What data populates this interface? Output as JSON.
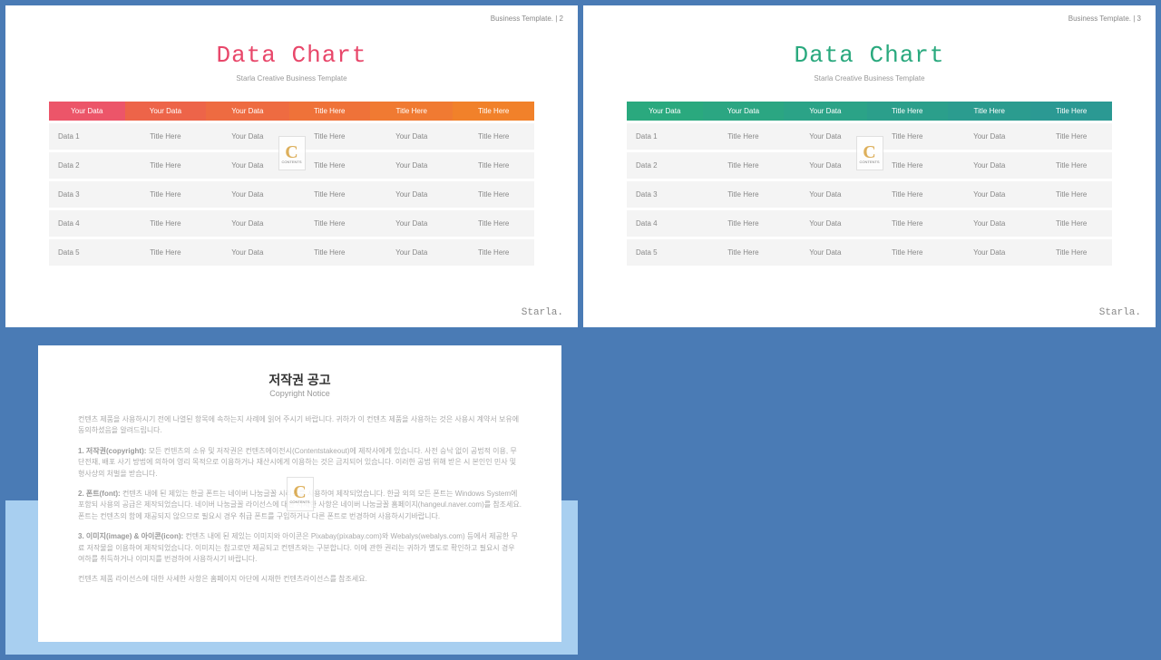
{
  "header_template": "Business Template.",
  "slides": [
    {
      "page": "2",
      "title": "Data Chart",
      "title_class": "pink",
      "subtitle": "Starla Creative Business Template",
      "brand": "Starla.",
      "header_colors": [
        "#ec5569",
        "#ed6449",
        "#ee6b41",
        "#ef7239",
        "#f07a32",
        "#f1812a"
      ],
      "columns": [
        "Your Data",
        "Your Data",
        "Your Data",
        "Title Here",
        "Title Here",
        "Title Here"
      ],
      "rows": [
        [
          "Data 1",
          "Title Here",
          "Your Data",
          "Title Here",
          "Your Data",
          "Title Here"
        ],
        [
          "Data 2",
          "Title Here",
          "Your Data",
          "Title Here",
          "Your Data",
          "Title Here"
        ],
        [
          "Data 3",
          "Title Here",
          "Your Data",
          "Title Here",
          "Your Data",
          "Title Here"
        ],
        [
          "Data 4",
          "Title Here",
          "Your Data",
          "Title Here",
          "Your Data",
          "Title Here"
        ],
        [
          "Data 5",
          "Title Here",
          "Your Data",
          "Title Here",
          "Your Data",
          "Title Here"
        ]
      ]
    },
    {
      "page": "3",
      "title": "Data Chart",
      "title_class": "green",
      "subtitle": "Starla Creative Business Template",
      "brand": "Starla.",
      "header_colors": [
        "#2aa97e",
        "#2ba682",
        "#2ba387",
        "#2b9f8b",
        "#2b9c8f",
        "#2b9993"
      ],
      "columns": [
        "Your Data",
        "Your Data",
        "Your Data",
        "Title Here",
        "Title Here",
        "Title Here"
      ],
      "rows": [
        [
          "Data 1",
          "Title Here",
          "Your Data",
          "Title Here",
          "Your Data",
          "Title Here"
        ],
        [
          "Data 2",
          "Title Here",
          "Your Data",
          "Title Here",
          "Your Data",
          "Title Here"
        ],
        [
          "Data 3",
          "Title Here",
          "Your Data",
          "Title Here",
          "Your Data",
          "Title Here"
        ],
        [
          "Data 4",
          "Title Here",
          "Your Data",
          "Title Here",
          "Your Data",
          "Title Here"
        ],
        [
          "Data 5",
          "Title Here",
          "Your Data",
          "Title Here",
          "Your Data",
          "Title Here"
        ]
      ]
    }
  ],
  "copyright": {
    "title": "저작권 공고",
    "subtitle": "Copyright Notice",
    "paragraphs": [
      "컨텐츠 제품을 사용하시기 전에 나열된 항목에 속하는지 사례에 읽어 주시기 바랍니다. 귀하가 이 컨텐츠 제품을 사용하는 것은 사용시 계약서 보유에 동의하셨음을 알려드립니다.",
      "1. 저작권(copyright): 모든 컨텐츠의 소유 및 저작권은 컨텐츠에이전시(Contentstakeout)에 제작사에게 있습니다. 사전 승낙 없이 공법적 이용, 무단전재, 배포 사기 방법에 의하여 영리 목적으로 이용하거나 재산시에게 이용하는 것은 금지되어 있습니다. 이러한 공법 위해 받은 시 본인인 민사 및 형사상의 처벌을 받습니다.",
      "2. 폰트(font): 컨텐츠 내에 된 제있는 한글 폰트는 네이버 나눔글꼴 시리즈를 사용하여 제작되었습니다. 한글 외의 모든 폰트는 Windows System에 포함되 사용의 공급은 제작되었습니다. 네이버 나눔글꼴 라이선스에 대한 사세한 사항은 네이버 나눔글꼴 홈페이지(hangeul.naver.com)를 참조세요. 폰트는 컨텐츠의 함에 재공되지 않으므로 필요시 경우 취급 폰트를 구입하거나 다른 폰트로 번경하여 사용하시기바랍니다.",
      "3. 이미지(image) & 아이콘(icon): 컨텐츠 내에 된 제있는 이미지와 아이콘은 Pixabay(pixabay.com)와 Webalys(webalys.com) 등에서 제공한 무료 저작물을 이용하여 제작되었습니다. 이미지는 참고로만 제공되고 컨텐츠와는 구분합니다. 이에 관한 권리는 귀하가 별도로 확인하고 필요시 경우 여하를 취득하거나 이미지를 번경하여 사용하시기 바랍니다.",
      "컨텐츠 제품 라이선스에 대한 사세한 사항은 홈페이지 아단에 시재한 컨텐츠라이선스를 참조세요."
    ]
  },
  "watermark": {
    "letter": "C",
    "sub": "CONTENTS"
  }
}
